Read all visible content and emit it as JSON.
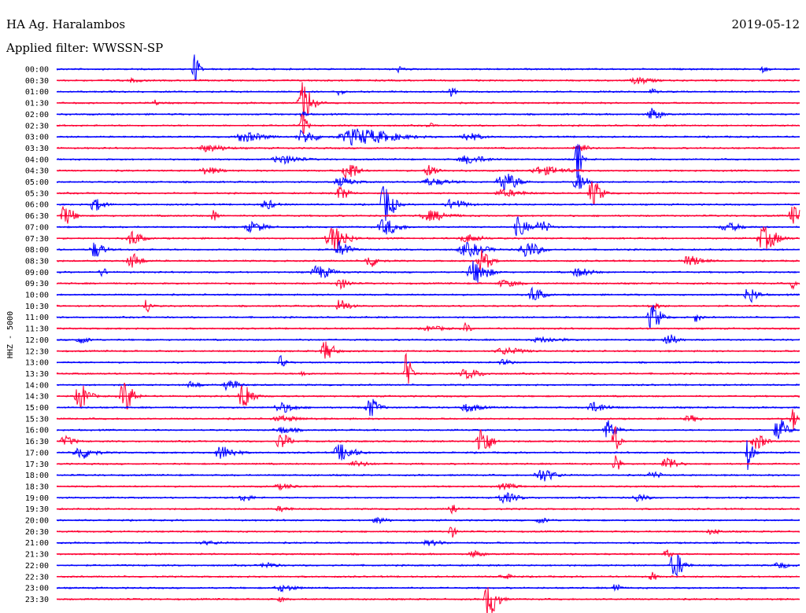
{
  "chart_data": {
    "type": "line",
    "title": "HA Ag. Haralambos",
    "date": "2019-05-12",
    "subtitle": "Applied filter: WWSSN-SP",
    "ylabel": "HHZ - 5000",
    "xlabel": "",
    "colors": {
      "blue": "#0000ff",
      "red": "#ff0033"
    },
    "trace_colors_cycle": [
      "blue",
      "red"
    ],
    "rows": [
      {
        "label": "00:00",
        "events": [
          [
            0.185,
            20,
            1
          ],
          [
            0.46,
            4,
            1
          ],
          [
            0.95,
            4,
            1
          ]
        ]
      },
      {
        "label": "00:30",
        "events": [
          [
            0.78,
            4,
            3
          ],
          [
            0.1,
            2,
            2
          ]
        ]
      },
      {
        "label": "01:00",
        "events": [
          [
            0.38,
            4,
            1
          ],
          [
            0.53,
            6,
            1
          ],
          [
            0.8,
            4,
            1
          ]
        ]
      },
      {
        "label": "01:30",
        "events": [
          [
            0.33,
            26,
            2
          ],
          [
            0.13,
            4,
            1
          ]
        ]
      },
      {
        "label": "02:00",
        "events": [
          [
            0.8,
            8,
            2
          ],
          [
            0.33,
            4,
            1
          ]
        ]
      },
      {
        "label": "02:30",
        "events": [
          [
            0.33,
            16,
            1
          ],
          [
            0.5,
            3,
            1
          ]
        ]
      },
      {
        "label": "03:00",
        "events": [
          [
            0.33,
            8,
            3
          ],
          [
            0.4,
            10,
            8
          ],
          [
            0.25,
            6,
            4
          ],
          [
            0.55,
            5,
            3
          ]
        ]
      },
      {
        "label": "03:30",
        "events": [
          [
            0.2,
            4,
            4
          ],
          [
            0.7,
            6,
            2
          ]
        ]
      },
      {
        "label": "04:00",
        "events": [
          [
            0.7,
            26,
            1
          ],
          [
            0.3,
            5,
            4
          ],
          [
            0.55,
            5,
            4
          ]
        ]
      },
      {
        "label": "04:30",
        "events": [
          [
            0.39,
            14,
            2
          ],
          [
            0.65,
            5,
            5
          ],
          [
            0.5,
            7,
            2
          ],
          [
            0.2,
            4,
            3
          ]
        ]
      },
      {
        "label": "05:00",
        "events": [
          [
            0.6,
            12,
            3
          ],
          [
            0.7,
            12,
            2
          ],
          [
            0.38,
            5,
            3
          ],
          [
            0.5,
            4,
            4
          ]
        ]
      },
      {
        "label": "05:30",
        "events": [
          [
            0.72,
            16,
            2
          ],
          [
            0.38,
            8,
            2
          ],
          [
            0.6,
            4,
            4
          ]
        ]
      },
      {
        "label": "06:00",
        "events": [
          [
            0.44,
            24,
            2
          ],
          [
            0.05,
            8,
            2
          ],
          [
            0.53,
            6,
            3
          ],
          [
            0.28,
            6,
            2
          ]
        ]
      },
      {
        "label": "06:30",
        "events": [
          [
            0.01,
            12,
            2
          ],
          [
            0.99,
            12,
            2
          ],
          [
            0.21,
            8,
            1
          ],
          [
            0.5,
            6,
            4
          ]
        ]
      },
      {
        "label": "07:00",
        "events": [
          [
            0.44,
            10,
            3
          ],
          [
            0.62,
            12,
            2
          ],
          [
            0.65,
            8,
            2
          ],
          [
            0.26,
            6,
            3
          ],
          [
            0.9,
            5,
            3
          ]
        ]
      },
      {
        "label": "07:30",
        "events": [
          [
            0.37,
            16,
            3
          ],
          [
            0.1,
            10,
            2
          ],
          [
            0.95,
            14,
            3
          ],
          [
            0.55,
            5,
            3
          ]
        ]
      },
      {
        "label": "08:00",
        "events": [
          [
            0.05,
            10,
            2
          ],
          [
            0.38,
            10,
            2
          ],
          [
            0.55,
            8,
            4
          ],
          [
            0.63,
            10,
            3
          ]
        ]
      },
      {
        "label": "08:30",
        "events": [
          [
            0.1,
            10,
            2
          ],
          [
            0.57,
            14,
            2
          ],
          [
            0.42,
            8,
            2
          ],
          [
            0.85,
            6,
            3
          ]
        ]
      },
      {
        "label": "09:00",
        "events": [
          [
            0.56,
            14,
            3
          ],
          [
            0.35,
            8,
            3
          ],
          [
            0.06,
            6,
            1
          ],
          [
            0.7,
            5,
            3
          ]
        ]
      },
      {
        "label": "09:30",
        "events": [
          [
            0.38,
            6,
            2
          ],
          [
            0.6,
            4,
            3
          ],
          [
            0.99,
            6,
            1
          ]
        ]
      },
      {
        "label": "10:00",
        "events": [
          [
            0.64,
            10,
            2
          ],
          [
            0.93,
            10,
            2
          ]
        ]
      },
      {
        "label": "10:30",
        "events": [
          [
            0.12,
            10,
            1
          ],
          [
            0.38,
            8,
            2
          ],
          [
            0.8,
            4,
            2
          ]
        ]
      },
      {
        "label": "11:00",
        "events": [
          [
            0.8,
            16,
            2
          ],
          [
            0.86,
            6,
            1
          ]
        ]
      },
      {
        "label": "11:30",
        "events": [
          [
            0.55,
            6,
            1
          ],
          [
            0.5,
            3,
            3
          ]
        ]
      },
      {
        "label": "12:00",
        "events": [
          [
            0.82,
            8,
            2
          ],
          [
            0.03,
            4,
            2
          ],
          [
            0.65,
            3,
            4
          ]
        ]
      },
      {
        "label": "12:30",
        "events": [
          [
            0.36,
            12,
            2
          ],
          [
            0.6,
            4,
            4
          ]
        ]
      },
      {
        "label": "13:00",
        "events": [
          [
            0.3,
            8,
            1
          ],
          [
            0.6,
            3,
            2
          ]
        ]
      },
      {
        "label": "13:30",
        "events": [
          [
            0.47,
            26,
            1
          ],
          [
            0.55,
            6,
            3
          ],
          [
            0.33,
            4,
            1
          ]
        ]
      },
      {
        "label": "14:00",
        "events": [
          [
            0.23,
            8,
            2
          ],
          [
            0.18,
            4,
            2
          ]
        ]
      },
      {
        "label": "14:30",
        "events": [
          [
            0.03,
            16,
            2
          ],
          [
            0.09,
            20,
            2
          ],
          [
            0.25,
            18,
            2
          ]
        ]
      },
      {
        "label": "15:00",
        "events": [
          [
            0.42,
            12,
            2
          ],
          [
            0.3,
            6,
            3
          ],
          [
            0.55,
            5,
            3
          ],
          [
            0.72,
            6,
            3
          ]
        ]
      },
      {
        "label": "15:30",
        "events": [
          [
            0.99,
            14,
            1
          ],
          [
            0.85,
            4,
            2
          ],
          [
            0.3,
            3,
            4
          ]
        ]
      },
      {
        "label": "16:00",
        "events": [
          [
            0.74,
            12,
            2
          ],
          [
            0.97,
            14,
            2
          ],
          [
            0.3,
            4,
            3
          ]
        ]
      },
      {
        "label": "16:30",
        "events": [
          [
            0.3,
            10,
            2
          ],
          [
            0.57,
            20,
            2
          ],
          [
            0.75,
            20,
            1
          ],
          [
            0.94,
            10,
            2
          ],
          [
            0.01,
            6,
            2
          ]
        ]
      },
      {
        "label": "17:00",
        "events": [
          [
            0.38,
            10,
            3
          ],
          [
            0.03,
            8,
            3
          ],
          [
            0.22,
            8,
            3
          ],
          [
            0.93,
            22,
            1
          ]
        ]
      },
      {
        "label": "17:30",
        "events": [
          [
            0.82,
            10,
            2
          ],
          [
            0.75,
            16,
            1
          ],
          [
            0.4,
            3,
            3
          ]
        ]
      },
      {
        "label": "18:00",
        "events": [
          [
            0.65,
            8,
            3
          ],
          [
            0.8,
            4,
            2
          ]
        ]
      },
      {
        "label": "18:30",
        "events": [
          [
            0.3,
            3,
            3
          ],
          [
            0.6,
            3,
            3
          ]
        ]
      },
      {
        "label": "19:00",
        "events": [
          [
            0.6,
            6,
            3
          ],
          [
            0.78,
            5,
            2
          ],
          [
            0.25,
            4,
            2
          ]
        ]
      },
      {
        "label": "19:30",
        "events": [
          [
            0.53,
            10,
            1
          ],
          [
            0.3,
            3,
            2
          ]
        ]
      },
      {
        "label": "20:00",
        "events": [
          [
            0.43,
            4,
            2
          ],
          [
            0.65,
            3,
            2
          ]
        ]
      },
      {
        "label": "20:30",
        "events": [
          [
            0.53,
            8,
            1
          ],
          [
            0.88,
            3,
            2
          ]
        ]
      },
      {
        "label": "21:00",
        "events": [
          [
            0.5,
            3,
            3
          ],
          [
            0.2,
            2,
            3
          ]
        ]
      },
      {
        "label": "21:30",
        "events": [
          [
            0.82,
            8,
            1
          ],
          [
            0.56,
            4,
            2
          ]
        ]
      },
      {
        "label": "22:00",
        "events": [
          [
            0.83,
            16,
            2
          ],
          [
            0.28,
            4,
            2
          ],
          [
            0.97,
            4,
            2
          ]
        ]
      },
      {
        "label": "22:30",
        "events": [
          [
            0.8,
            6,
            1
          ],
          [
            0.6,
            3,
            2
          ]
        ]
      },
      {
        "label": "23:00",
        "events": [
          [
            0.75,
            10,
            1
          ],
          [
            0.3,
            4,
            3
          ]
        ]
      },
      {
        "label": "23:30",
        "events": [
          [
            0.58,
            22,
            2
          ],
          [
            0.3,
            3,
            1
          ]
        ]
      }
    ]
  }
}
